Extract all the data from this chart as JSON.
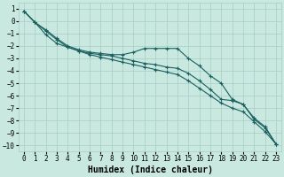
{
  "xlabel": "Humidex (Indice chaleur)",
  "ylabel": "",
  "background_color": "#c8e8e0",
  "grid_color": "#a8ccc4",
  "line_color": "#1a6060",
  "xlim": [
    -0.5,
    23.5
  ],
  "ylim": [
    -10.5,
    1.5
  ],
  "x": [
    0,
    1,
    2,
    3,
    4,
    5,
    6,
    7,
    8,
    9,
    10,
    11,
    12,
    13,
    14,
    15,
    16,
    17,
    18,
    19,
    20,
    21,
    22,
    23
  ],
  "line1": [
    0.8,
    -0.1,
    -0.7,
    -1.4,
    -2.0,
    -2.3,
    -2.5,
    -2.6,
    -2.7,
    -2.7,
    -2.5,
    -2.2,
    -2.2,
    -2.2,
    -2.2,
    -3.0,
    -3.6,
    -4.4,
    -5.0,
    -6.3,
    -6.7,
    -7.9,
    -8.6,
    -9.9
  ],
  "line2": [
    0.8,
    -0.1,
    -0.8,
    -1.5,
    -2.1,
    -2.4,
    -2.6,
    -2.7,
    -2.8,
    -3.0,
    -3.2,
    -3.4,
    -3.5,
    -3.7,
    -3.8,
    -4.2,
    -4.8,
    -5.5,
    -6.3,
    -6.4,
    -6.7,
    -7.8,
    -8.5,
    -9.9
  ],
  "line3": [
    0.8,
    -0.1,
    -1.1,
    -1.8,
    -2.1,
    -2.4,
    -2.7,
    -2.9,
    -3.1,
    -3.3,
    -3.5,
    -3.7,
    -3.9,
    -4.1,
    -4.3,
    -4.8,
    -5.4,
    -6.0,
    -6.6,
    -7.0,
    -7.3,
    -8.1,
    -8.9,
    -9.9
  ],
  "font_family": "monospace",
  "tick_fontsize": 5.5,
  "label_fontsize": 7
}
